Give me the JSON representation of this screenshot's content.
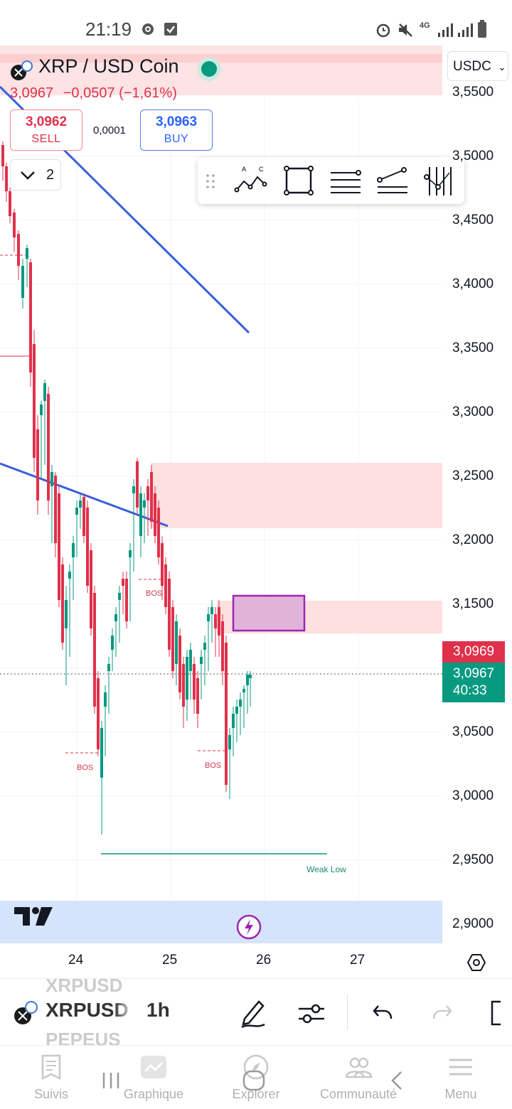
{
  "status_bar": {
    "time": "21:19",
    "network": "4G"
  },
  "chart_header": {
    "symbol_title": "XRP / USD Coin",
    "last_price": "3,0967",
    "change": "−0,0507 (−1,61%)",
    "sell": {
      "value": "3,0962",
      "label": "SELL"
    },
    "buy": {
      "value": "3,0963",
      "label": "BUY"
    },
    "spread": "0,0001",
    "layers_count": "2",
    "currency": "USDC"
  },
  "drawing_toolbar": {
    "items": [
      "drag-handle-icon",
      "abcd-pattern-icon",
      "rectangle-icon",
      "horizontal-lines-icon",
      "trend-line-icon",
      "fib-retracement-icon"
    ]
  },
  "price_axis": {
    "labels": [
      "3,5500",
      "3,5000",
      "3,4500",
      "3,4000",
      "3,3500",
      "3,3000",
      "3,2500",
      "3,2000",
      "3,1500",
      "3,0500",
      "3,0000",
      "2,9500",
      "2,9000"
    ],
    "tag_red": "3,0969",
    "tag_green_price": "3,0967",
    "tag_green_timer": "40:33"
  },
  "date_axis": {
    "labels": [
      "24",
      "25",
      "26",
      "27"
    ]
  },
  "annotations": {
    "bos": "BOS",
    "weak_low": "Weak Low"
  },
  "colors": {
    "up": "#089981",
    "down": "#e0314b",
    "trendline": "#3a5fd9",
    "zone": "#fde0e0",
    "box_border": "#9c27b0"
  },
  "symbol_bar": {
    "symbol": "XRPUSD",
    "symbol_ghost_above": "XRPUSD",
    "symbol_ghost_below": "PEPEUS",
    "interval": "1h"
  },
  "bottom_nav": [
    {
      "label": "Suivis",
      "icon": "watchlist-icon"
    },
    {
      "label": "Graphique",
      "icon": "chart-icon"
    },
    {
      "label": "Explorer",
      "icon": "compass-icon"
    },
    {
      "label": "Communauté",
      "icon": "community-icon"
    },
    {
      "label": "Menu",
      "icon": "menu-icon"
    }
  ]
}
